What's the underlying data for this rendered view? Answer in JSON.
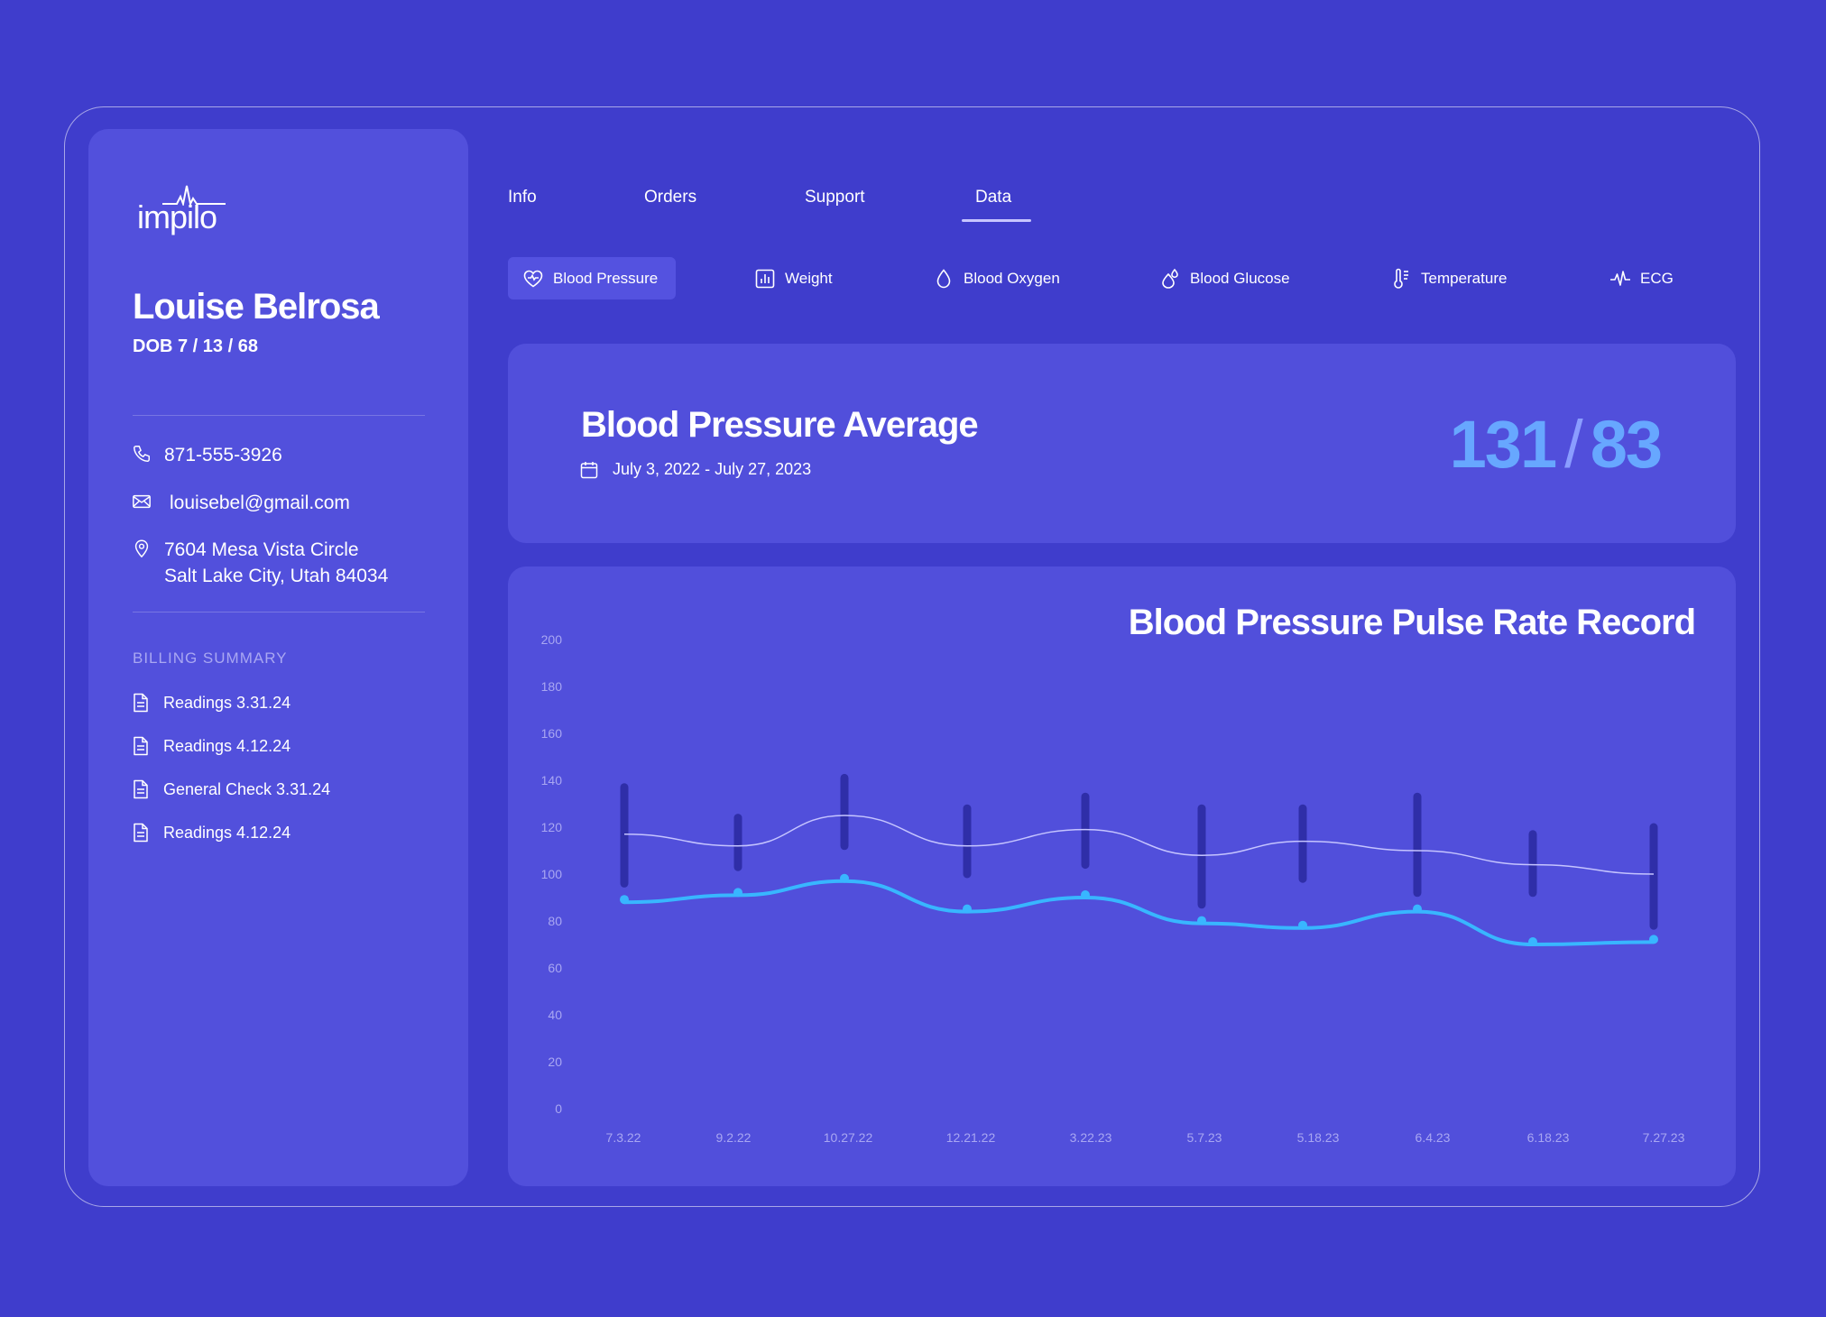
{
  "app": {
    "logo_text": "impilo"
  },
  "patient": {
    "name": "Louise Belrosa",
    "dob": "DOB  7 / 13 / 68",
    "phone": "871-555-3926",
    "email": "louisebel@gmail.com",
    "address_line1": "7604 Mesa Vista Circle",
    "address_line2": "Salt Lake City, Utah 84034"
  },
  "billing": {
    "title": "BILLING SUMMARY",
    "items": [
      {
        "label": "Readings 3.31.24"
      },
      {
        "label": "Readings 4.12.24"
      },
      {
        "label": "General Check 3.31.24"
      },
      {
        "label": "Readings 4.12.24"
      }
    ]
  },
  "tabs": [
    {
      "label": "Info"
    },
    {
      "label": "Orders"
    },
    {
      "label": "Support"
    },
    {
      "label": "Data",
      "active": true
    }
  ],
  "subtabs": [
    {
      "label": "Blood Pressure",
      "icon": "heart-pulse-icon",
      "active": true
    },
    {
      "label": "Weight",
      "icon": "bar-chart-icon"
    },
    {
      "label": "Blood Oxygen",
      "icon": "drop-icon"
    },
    {
      "label": "Blood Glucose",
      "icon": "drops-icon"
    },
    {
      "label": "Temperature",
      "icon": "thermometer-icon"
    },
    {
      "label": "ECG",
      "icon": "ecg-icon"
    }
  ],
  "average": {
    "title": "Blood Pressure Average",
    "date_range": "July 3, 2022 - July 27, 2023",
    "systolic": "131",
    "diastolic": "83",
    "separator": "/"
  },
  "colors": {
    "background": "#3f3dcc",
    "panel": "#514fdb",
    "accent": "#67a7ff",
    "pulse_line": "#38b6ff",
    "range_bar": "#2f2ea8"
  },
  "chart_data": {
    "type": "line",
    "title": "Blood Pressure Pulse Rate Record",
    "categories": [
      "7.3.22",
      "9.2.22",
      "10.27.22",
      "12.21.22",
      "3.22.23",
      "5.7.23",
      "5.18.23",
      "6.4.23",
      "6.18.23",
      "7.27.23"
    ],
    "ylim": [
      0,
      200
    ],
    "yticks": [
      0,
      20,
      40,
      60,
      80,
      100,
      120,
      140,
      160,
      180,
      200
    ],
    "ranges": [
      {
        "low": 96,
        "high": 137
      },
      {
        "low": 103,
        "high": 124
      },
      {
        "low": 112,
        "high": 141
      },
      {
        "low": 100,
        "high": 128
      },
      {
        "low": 104,
        "high": 133
      },
      {
        "low": 87,
        "high": 128
      },
      {
        "low": 98,
        "high": 128
      },
      {
        "low": 92,
        "high": 133
      },
      {
        "low": 92,
        "high": 117
      },
      {
        "low": 78,
        "high": 120
      }
    ],
    "series": [
      {
        "values": [
          117,
          112,
          125,
          112,
          119,
          108,
          114,
          110,
          104,
          100
        ],
        "color": "#c5c4ff"
      },
      {
        "values": [
          88,
          91,
          97,
          84,
          90,
          79,
          77,
          84,
          70,
          71
        ],
        "color": "#38b6ff"
      }
    ]
  }
}
